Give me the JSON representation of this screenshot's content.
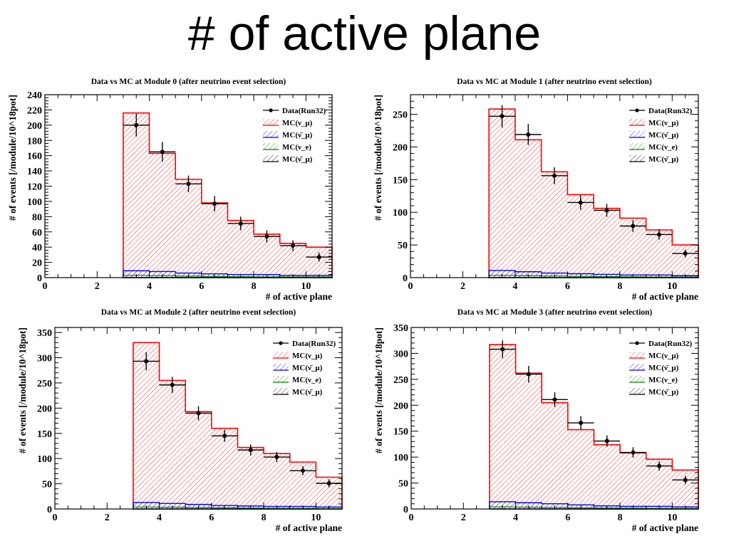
{
  "slide": {
    "title": "# of active plane"
  },
  "colors": {
    "mc_numu": "#ff0000",
    "mc_numubar": "#0000ff",
    "mc_nue": "#008000",
    "mc_other": "#000000",
    "data": "#000000"
  },
  "chart_data": [
    {
      "type": "bar",
      "title": "Data vs MC at Module 0 (after neutrino event selection)",
      "xlabel": "# of active plane",
      "ylabel": "# of events [/module/10^18pot]",
      "xlim": [
        0,
        11
      ],
      "ylim": [
        0,
        240
      ],
      "xticks": [
        0,
        2,
        4,
        6,
        8,
        10
      ],
      "yticks": [
        0,
        20,
        40,
        60,
        80,
        100,
        120,
        140,
        160,
        180,
        200,
        220,
        240
      ],
      "bin_edges": [
        3,
        4,
        5,
        6,
        7,
        8,
        9,
        10,
        11
      ],
      "legend": [
        "Data(Run32)",
        "MC(ν_μ)",
        "MC(ν̄_μ)",
        "MC(ν_e)",
        "MC(ν̄_μ)"
      ],
      "legend_position": "top-right",
      "mc_numu": [
        216,
        163,
        129,
        98,
        75,
        57,
        45,
        40
      ],
      "mc_numubar": [
        9,
        8,
        6,
        5,
        4,
        4,
        3,
        3
      ],
      "mc_nue": [
        3,
        2.5,
        2,
        1.5,
        1.2,
        1,
        1,
        1
      ],
      "data": {
        "x": [
          3.5,
          4.5,
          5.5,
          6.5,
          7.5,
          8.5,
          9.5,
          10.5
        ],
        "y": [
          200,
          165,
          123,
          97,
          71,
          54,
          42,
          27
        ],
        "yerr": [
          15,
          13,
          11,
          10,
          9,
          8,
          7,
          6
        ]
      }
    },
    {
      "type": "bar",
      "title": "Data vs MC at Module 1 (after neutrino event selection)",
      "xlabel": "# of active plane",
      "ylabel": "# of events [/module/10^18pot]",
      "xlim": [
        0,
        11
      ],
      "ylim": [
        0,
        280
      ],
      "xticks": [
        0,
        2,
        4,
        6,
        8,
        10
      ],
      "yticks": [
        0,
        50,
        100,
        150,
        200,
        250
      ],
      "bin_edges": [
        3,
        4,
        5,
        6,
        7,
        8,
        9,
        10,
        11
      ],
      "legend": [
        "Data(Run32)",
        "MC(ν_μ)",
        "MC(ν̄_μ)",
        "MC(ν_e)",
        "MC(ν̄_μ)"
      ],
      "legend_position": "top-right",
      "mc_numu": [
        258,
        211,
        162,
        127,
        106,
        91,
        73,
        50
      ],
      "mc_numubar": [
        11,
        9,
        7,
        6,
        5,
        4,
        4,
        3
      ],
      "mc_nue": [
        3.5,
        3,
        2.5,
        2,
        1.5,
        1.2,
        1,
        1
      ],
      "data": {
        "x": [
          3.5,
          4.5,
          5.5,
          6.5,
          7.5,
          8.5,
          9.5,
          10.5
        ],
        "y": [
          247,
          219,
          156,
          115,
          103,
          79,
          66,
          37
        ],
        "yerr": [
          17,
          16,
          13,
          11,
          10,
          9,
          8,
          6
        ]
      }
    },
    {
      "type": "bar",
      "title": "Data vs MC at Module 2 (after neutrino event selection)",
      "xlabel": "# of active plane",
      "ylabel": "# of events [/module/10^18pot]",
      "xlim": [
        0,
        11
      ],
      "ylim": [
        0,
        360
      ],
      "xticks": [
        0,
        2,
        4,
        6,
        8,
        10
      ],
      "yticks": [
        0,
        50,
        100,
        150,
        200,
        250,
        300,
        350
      ],
      "bin_edges": [
        3,
        4,
        5,
        6,
        7,
        8,
        9,
        10,
        11
      ],
      "legend": [
        "Data(Run32)",
        "MC(ν_μ)",
        "MC(ν̄_μ)",
        "MC(ν_e)",
        "MC(ν̄_μ)"
      ],
      "legend_position": "top-right",
      "mc_numu": [
        330,
        255,
        193,
        160,
        122,
        110,
        93,
        63
      ],
      "mc_numubar": [
        13,
        11,
        9,
        7,
        6,
        5,
        5,
        4
      ],
      "mc_nue": [
        4,
        3.5,
        3,
        2.5,
        2,
        1.5,
        1.2,
        1
      ],
      "data": {
        "x": [
          3.5,
          4.5,
          5.5,
          6.5,
          7.5,
          8.5,
          9.5,
          10.5
        ],
        "y": [
          293,
          246,
          190,
          145,
          117,
          103,
          76,
          51
        ],
        "yerr": [
          18,
          16,
          14,
          12,
          11,
          10,
          9,
          8
        ]
      }
    },
    {
      "type": "bar",
      "title": "Data vs MC at Module 3 (after neutrino event selection)",
      "xlabel": "# of active plane",
      "ylabel": "# of events [/module/10^18pot]",
      "xlim": [
        0,
        11
      ],
      "ylim": [
        0,
        350
      ],
      "xticks": [
        0,
        2,
        4,
        6,
        8,
        10
      ],
      "yticks": [
        0,
        50,
        100,
        150,
        200,
        250,
        300,
        350
      ],
      "bin_edges": [
        3,
        4,
        5,
        6,
        7,
        8,
        9,
        10,
        11
      ],
      "legend": [
        "Data(Run32)",
        "MC(ν_μ)",
        "MC(ν̄_μ)",
        "MC(ν_e)",
        "MC(ν̄_μ)"
      ],
      "legend_position": "top-right",
      "mc_numu": [
        317,
        262,
        205,
        153,
        124,
        108,
        96,
        75
      ],
      "mc_numubar": [
        14,
        12,
        10,
        8,
        6,
        5,
        5,
        4
      ],
      "mc_nue": [
        4,
        3.5,
        3,
        2.5,
        2,
        1.5,
        1.2,
        1
      ],
      "data": {
        "x": [
          3.5,
          4.5,
          5.5,
          6.5,
          7.5,
          8.5,
          9.5,
          10.5
        ],
        "y": [
          308,
          260,
          211,
          166,
          131,
          109,
          83,
          56
        ],
        "yerr": [
          17,
          16,
          14,
          13,
          11,
          10,
          9,
          8
        ]
      }
    }
  ]
}
